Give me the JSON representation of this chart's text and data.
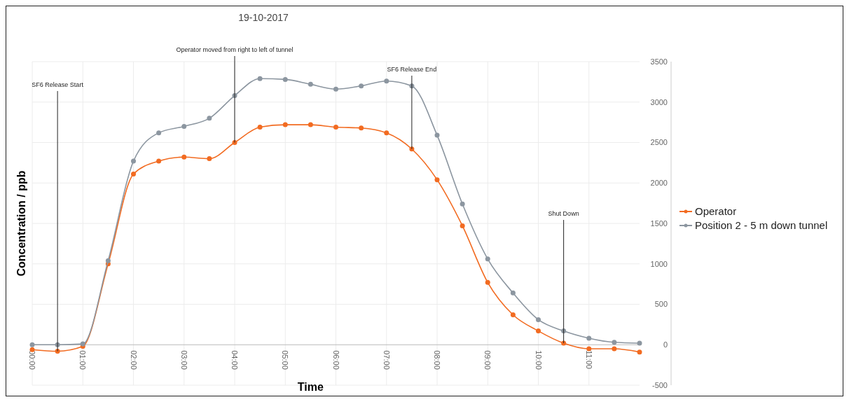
{
  "chart_data": {
    "type": "line",
    "title": "19-10-2017",
    "xlabel": "Time",
    "ylabel": "Concentration / ppb",
    "x": [
      0,
      0.5,
      1,
      1.5,
      2,
      2.5,
      3,
      3.5,
      4,
      4.5,
      5,
      5.5,
      6,
      6.5,
      7,
      7.5,
      8,
      8.5,
      9,
      9.5,
      10,
      10.5,
      11,
      11.5,
      12
    ],
    "series": [
      {
        "name": "Operator",
        "color": "#f26b21",
        "values": [
          -60,
          -80,
          -20,
          1000,
          2110,
          2270,
          2320,
          2300,
          2500,
          2690,
          2720,
          2720,
          2690,
          2680,
          2620,
          2420,
          2040,
          1470,
          770,
          370,
          170,
          20,
          -50,
          -50,
          -90
        ]
      },
      {
        "name": "Position 2 - 5 m down tunnel",
        "color": "#8c96a0",
        "values": [
          0,
          0,
          10,
          1040,
          2270,
          2620,
          2700,
          2800,
          3080,
          3290,
          3280,
          3220,
          3160,
          3200,
          3260,
          3200,
          2590,
          1740,
          1060,
          640,
          310,
          170,
          80,
          30,
          20
        ]
      }
    ],
    "xlim": [
      0,
      12
    ],
    "xticks": [
      {
        "value": 0,
        "label": "00:00"
      },
      {
        "value": 1,
        "label": "01:00"
      },
      {
        "value": 2,
        "label": "02:00"
      },
      {
        "value": 3,
        "label": "03:00"
      },
      {
        "value": 4,
        "label": "04:00"
      },
      {
        "value": 5,
        "label": "05:00"
      },
      {
        "value": 6,
        "label": "06:00"
      },
      {
        "value": 7,
        "label": "07:00"
      },
      {
        "value": 8,
        "label": "08:00"
      },
      {
        "value": 9,
        "label": "09:00"
      },
      {
        "value": 10,
        "label": "10:00"
      },
      {
        "value": 11,
        "label": "11:00"
      }
    ],
    "ylim": [
      -500,
      3500
    ],
    "yticks": [
      -500,
      0,
      500,
      1000,
      1500,
      2000,
      2500,
      3000,
      3500
    ],
    "grid": true,
    "legend": "right",
    "marker": "circle",
    "annotations": [
      {
        "text": "SF6 Release Start",
        "x": 0.5,
        "y": -80
      },
      {
        "text": "Operator moved from right to left of tunnel",
        "x": 4,
        "y": 2500
      },
      {
        "text": "SF6 Release End",
        "x": 7.5,
        "y": 2420
      },
      {
        "text": "Shut Down",
        "x": 10.5,
        "y": 20
      }
    ]
  }
}
